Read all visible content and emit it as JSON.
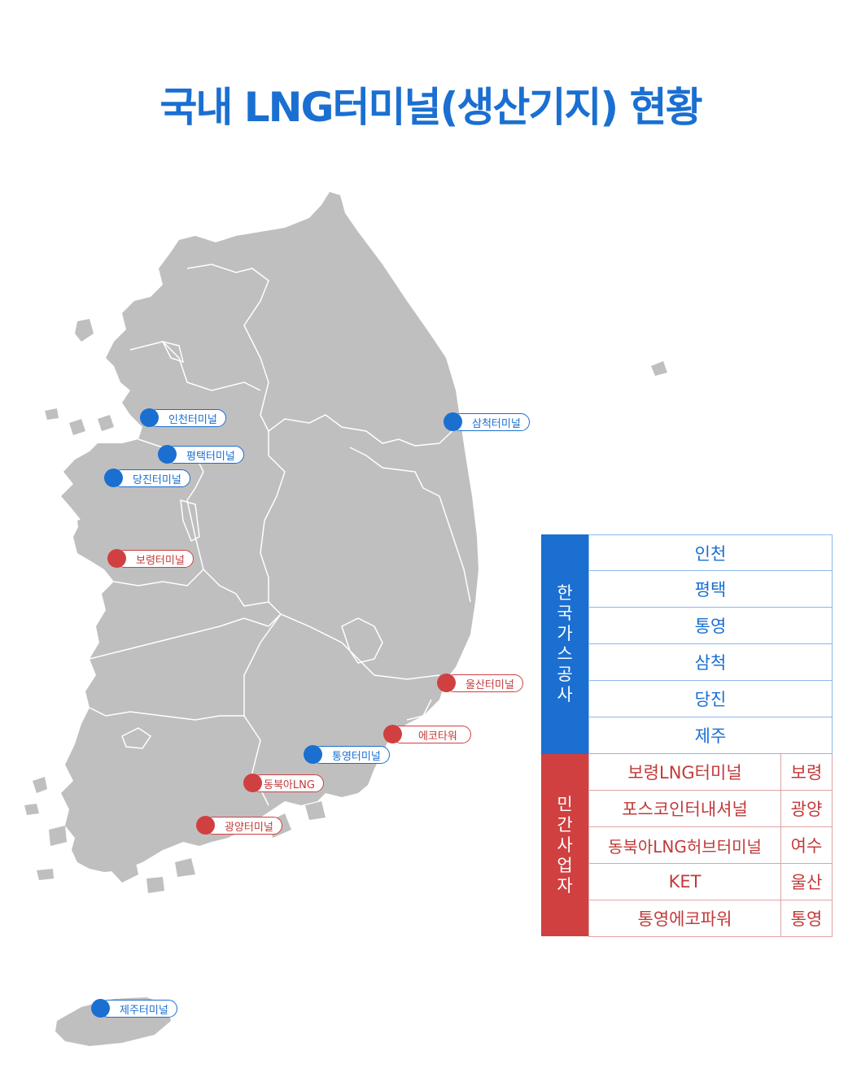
{
  "title": "국내 LNG터미널(생산기지) 현황",
  "colors": {
    "kogas": "#1a6fd1",
    "private": "#d04040",
    "land": "#bfbfbf",
    "border": "#ffffff"
  },
  "markers": [
    {
      "id": "incheon",
      "label": "인천터미널",
      "group": "kogas"
    },
    {
      "id": "pyeongtaek",
      "label": "평택터미널",
      "group": "kogas"
    },
    {
      "id": "dangjin",
      "label": "당진터미널",
      "group": "kogas"
    },
    {
      "id": "samcheok",
      "label": "삼척터미널",
      "group": "kogas"
    },
    {
      "id": "boryeong",
      "label": "보령터미널",
      "group": "private"
    },
    {
      "id": "ulsan",
      "label": "울산터미널",
      "group": "private"
    },
    {
      "id": "ecotower",
      "label": "에코타워",
      "group": "private"
    },
    {
      "id": "tongyeong",
      "label": "통영터미널",
      "group": "kogas"
    },
    {
      "id": "dongbuk",
      "label": "동북아LNG",
      "group": "private"
    },
    {
      "id": "gwangyang",
      "label": "광양터미널",
      "group": "private"
    },
    {
      "id": "jeju",
      "label": "제주터미널",
      "group": "kogas"
    }
  ],
  "legend": {
    "kogas": {
      "label_chars": [
        "한",
        "국",
        "가",
        "스",
        "공",
        "사"
      ],
      "items": [
        "인천",
        "평택",
        "통영",
        "삼척",
        "당진",
        "제주"
      ]
    },
    "private": {
      "label_chars": [
        "민",
        "간",
        "사",
        "업",
        "자"
      ],
      "items": [
        {
          "name": "보령LNG터미널",
          "city": "보령"
        },
        {
          "name": "포스코인터내셔널",
          "city": "광양"
        },
        {
          "name": "동북아LNG허브터미널",
          "city": "여수"
        },
        {
          "name": "KET",
          "city": "울산"
        },
        {
          "name": "통영에코파워",
          "city": "통영"
        }
      ]
    }
  }
}
